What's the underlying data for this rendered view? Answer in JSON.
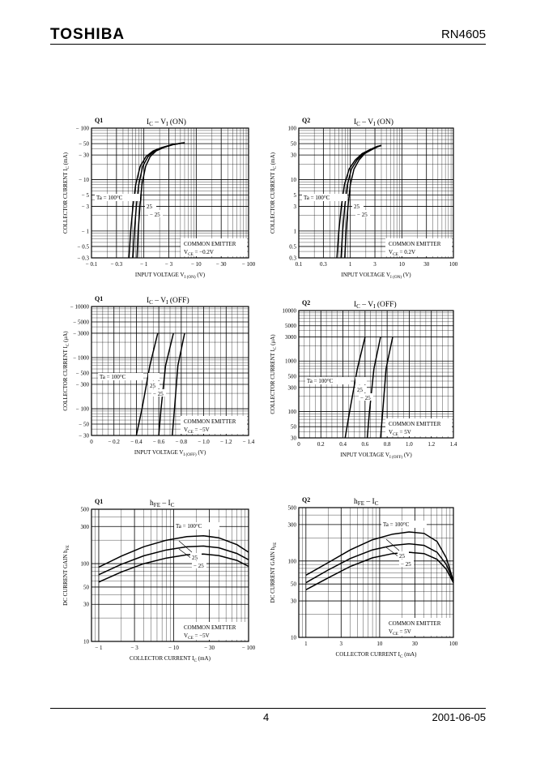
{
  "header": {
    "brand": "TOSHIBA",
    "part_number": "RN4605"
  },
  "footer": {
    "page_number": "4",
    "date": "2001-06-05"
  },
  "chart_data": [
    {
      "type": "line",
      "id": "q1-ic-vi-on",
      "panel": "Q1",
      "title_main": "I",
      "title_sub": "C",
      "title_rest": " – V",
      "title_sub2": "I",
      "title_tail": " (ON)",
      "x_scale": "log",
      "y_scale": "log",
      "negative": true,
      "xlim": [
        0.1,
        100
      ],
      "ylim": [
        0.3,
        100
      ],
      "x_ticks": [
        0.1,
        0.3,
        1,
        3,
        10,
        30,
        100
      ],
      "x_tick_labels": [
        "− 0.1",
        "− 0.3",
        "− 1",
        "− 3",
        "− 10",
        "− 30",
        "− 100"
      ],
      "y_ticks": [
        0.3,
        0.5,
        1,
        3,
        5,
        10,
        30,
        50,
        100
      ],
      "y_tick_labels": [
        "− 0.3",
        "− 0.5",
        "− 1",
        "− 3",
        "− 5",
        "− 10",
        "− 30",
        "− 50",
        "− 100"
      ],
      "xlabel": "INPUT VOLTAGE",
      "xlabel_sym": "V",
      "xlabel_sub": "I (ON)",
      "xlabel_unit": "(V)",
      "ylabel": "COLLECTOR CURRENT",
      "ylabel_sym": "I",
      "ylabel_sub": "C",
      "ylabel_unit": "(mA)",
      "note_line1": "COMMON EMITTER",
      "note_line2_sym": "V",
      "note_line2_sub": "CE",
      "note_line2_val": " = −0.2V",
      "series": [
        {
          "name": "Ta = 100°C",
          "x": [
            0.52,
            0.56,
            0.62,
            0.7,
            0.85,
            1.1,
            1.5,
            2.2,
            3.5,
            6.0
          ],
          "y": [
            0.3,
            1,
            3,
            8,
            18,
            28,
            36,
            42,
            48,
            52
          ]
        },
        {
          "name": "25",
          "x": [
            0.62,
            0.66,
            0.72,
            0.8,
            0.95,
            1.2,
            1.6,
            2.3,
            3.6,
            6.0
          ],
          "y": [
            0.3,
            1,
            3,
            8,
            18,
            28,
            36,
            42,
            48,
            52
          ]
        },
        {
          "name": "−25",
          "x": [
            0.74,
            0.78,
            0.84,
            0.92,
            1.08,
            1.32,
            1.72,
            2.4,
            3.7,
            6.0
          ],
          "y": [
            0.3,
            1,
            3,
            8,
            18,
            28,
            36,
            42,
            48,
            52
          ]
        }
      ],
      "legend_labels": [
        "Ta = 100°C",
        "25",
        "− 25"
      ]
    },
    {
      "type": "line",
      "id": "q2-ic-vi-on",
      "panel": "Q2",
      "title_main": "I",
      "title_sub": "C",
      "title_rest": " – V",
      "title_sub2": "I",
      "title_tail": " (ON)",
      "x_scale": "log",
      "y_scale": "log",
      "negative": false,
      "xlim": [
        0.1,
        100
      ],
      "ylim": [
        0.3,
        100
      ],
      "x_ticks": [
        0.1,
        0.3,
        1,
        3,
        10,
        30,
        100
      ],
      "x_tick_labels": [
        "0.1",
        "0.3",
        "1",
        "3",
        "10",
        "30",
        "100"
      ],
      "y_ticks": [
        0.3,
        0.5,
        1,
        3,
        5,
        10,
        30,
        50,
        100
      ],
      "y_tick_labels": [
        "0.3",
        "0.5",
        "1",
        "3",
        "5",
        "10",
        "30",
        "50",
        "100"
      ],
      "xlabel": "INPUT VOLTAGE",
      "xlabel_sym": "V",
      "xlabel_sub": "I (ON)",
      "xlabel_unit": "(V)",
      "ylabel": "COLLECTOR CURRENT",
      "ylabel_sym": "I",
      "ylabel_sub": "C",
      "ylabel_unit": "(mA)",
      "note_line1": "COMMON EMITTER",
      "note_line2_sym": "V",
      "note_line2_sub": "CE",
      "note_line2_val": " = 0.2V",
      "series": [
        {
          "name": "Ta = 100°C",
          "x": [
            0.55,
            0.6,
            0.67,
            0.77,
            0.95,
            1.25,
            1.7,
            2.4,
            3.3,
            4.0
          ],
          "y": [
            0.3,
            1,
            3,
            8,
            16,
            24,
            32,
            38,
            44,
            46
          ]
        },
        {
          "name": "25",
          "x": [
            0.66,
            0.71,
            0.78,
            0.88,
            1.05,
            1.35,
            1.8,
            2.5,
            3.4,
            4.0
          ],
          "y": [
            0.3,
            1,
            3,
            8,
            16,
            24,
            32,
            38,
            44,
            46
          ]
        },
        {
          "name": "−25",
          "x": [
            0.78,
            0.83,
            0.9,
            1.0,
            1.18,
            1.48,
            1.9,
            2.6,
            3.5,
            4.0
          ],
          "y": [
            0.3,
            1,
            3,
            8,
            16,
            24,
            32,
            38,
            44,
            46
          ]
        }
      ],
      "legend_labels": [
        "Ta = 100°C",
        "25",
        "− 25"
      ]
    },
    {
      "type": "line",
      "id": "q1-ic-vi-off",
      "panel": "Q1",
      "title_main": "I",
      "title_sub": "C",
      "title_rest": " – V",
      "title_sub2": "I",
      "title_tail": " (OFF)",
      "x_scale": "linear",
      "y_scale": "log",
      "negative": true,
      "xlim": [
        0,
        1.4
      ],
      "ylim": [
        30,
        10000
      ],
      "x_ticks": [
        0,
        0.2,
        0.4,
        0.6,
        0.8,
        1.0,
        1.2,
        1.4
      ],
      "x_tick_labels": [
        "0",
        "− 0.2",
        "− 0.4",
        "− 0.6",
        "− 0.8",
        "− 1.0",
        "− 1.2",
        "− 1.4"
      ],
      "y_ticks": [
        30,
        50,
        100,
        300,
        500,
        1000,
        3000,
        5000,
        10000
      ],
      "y_tick_labels": [
        "− 30",
        "− 50",
        "− 100",
        "− 300",
        "− 500",
        "− 1000",
        "− 3000",
        "− 5000",
        "− 10000"
      ],
      "xlabel": "INPUT VOLTAGE",
      "xlabel_sym": "V",
      "xlabel_sub": "I (OFF)",
      "xlabel_unit": "(V)",
      "ylabel": "COLLECTOR CURRENT",
      "ylabel_sym": "I",
      "ylabel_sub": "C",
      "ylabel_unit": "(μA)",
      "note_line1": "COMMON EMITTER",
      "note_line2_sym": "V",
      "note_line2_sub": "CE",
      "note_line2_val": " = −5V",
      "series": [
        {
          "name": "Ta = 100°C",
          "x": [
            0.4,
            0.45,
            0.52,
            0.59
          ],
          "y": [
            30,
            100,
            700,
            3000
          ]
        },
        {
          "name": "25",
          "x": [
            0.6,
            0.62,
            0.66,
            0.73
          ],
          "y": [
            30,
            100,
            700,
            3000
          ]
        },
        {
          "name": "−25",
          "x": [
            0.72,
            0.74,
            0.77,
            0.83
          ],
          "y": [
            30,
            100,
            700,
            3000
          ]
        }
      ],
      "legend_labels": [
        "Ta = 100°C",
        "25",
        "− 25"
      ]
    },
    {
      "type": "line",
      "id": "q2-ic-vi-off",
      "panel": "Q2",
      "title_main": "I",
      "title_sub": "C",
      "title_rest": " – V",
      "title_sub2": "I",
      "title_tail": " (OFF)",
      "x_scale": "linear",
      "y_scale": "log",
      "negative": false,
      "xlim": [
        0,
        1.4
      ],
      "ylim": [
        30,
        10000
      ],
      "x_ticks": [
        0,
        0.2,
        0.4,
        0.6,
        0.8,
        1.0,
        1.2,
        1.4
      ],
      "x_tick_labels": [
        "0",
        "0.2",
        "0.4",
        "0.6",
        "0.8",
        "1.0",
        "1.2",
        "1.4"
      ],
      "y_ticks": [
        30,
        50,
        100,
        300,
        500,
        1000,
        3000,
        5000,
        10000
      ],
      "y_tick_labels": [
        "30",
        "50",
        "100",
        "300",
        "500",
        "1000",
        "3000",
        "5000",
        "10000"
      ],
      "xlabel": "INPUT VOLTAGE",
      "xlabel_sym": "V",
      "xlabel_sub": "I (OFF)",
      "xlabel_unit": "(V)",
      "ylabel": "COLLECTOR CURRENT",
      "ylabel_sym": "I",
      "ylabel_sub": "C",
      "ylabel_unit": "(μA)",
      "note_line1": "COMMON EMITTER",
      "note_line2_sym": "V",
      "note_line2_sub": "CE",
      "note_line2_val": " = 5V",
      "series": [
        {
          "name": "Ta = 100°C",
          "x": [
            0.42,
            0.46,
            0.53,
            0.6
          ],
          "y": [
            30,
            100,
            700,
            3000
          ]
        },
        {
          "name": "25",
          "x": [
            0.62,
            0.64,
            0.68,
            0.74
          ],
          "y": [
            30,
            100,
            700,
            3000
          ]
        },
        {
          "name": "−25",
          "x": [
            0.74,
            0.76,
            0.79,
            0.85
          ],
          "y": [
            30,
            100,
            700,
            3000
          ]
        }
      ],
      "legend_labels": [
        "Ta = 100°C",
        "25",
        "− 25"
      ]
    },
    {
      "type": "line",
      "id": "q1-hfe-ic",
      "panel": "Q1",
      "title_main": "h",
      "title_sub": "FE",
      "title_rest": " – I",
      "title_sub2": "C",
      "title_tail": "",
      "x_scale": "log",
      "y_scale": "log",
      "negative": true,
      "xlim": [
        0.8,
        100
      ],
      "ylim": [
        10,
        500
      ],
      "x_ticks": [
        1,
        3,
        10,
        30,
        100
      ],
      "x_tick_labels": [
        "− 1",
        "− 3",
        "− 10",
        "− 30",
        "− 100"
      ],
      "y_ticks": [
        10,
        30,
        50,
        100,
        300,
        500
      ],
      "y_tick_labels": [
        "10",
        "30",
        "50",
        "100",
        "300",
        "500"
      ],
      "xlabel": "COLLECTOR CURRENT",
      "xlabel_sym": "I",
      "xlabel_sub": "C",
      "xlabel_unit": "(mA)",
      "ylabel": "DC CURRENT GAIN",
      "ylabel_sym": "h",
      "ylabel_sub": "FE",
      "ylabel_unit": "",
      "note_line1": "COMMON EMITTER",
      "note_line2_sym": "V",
      "note_line2_sub": "CE",
      "note_line2_val": " = −5V",
      "series": [
        {
          "name": "Ta = 100°C",
          "x": [
            1,
            2,
            4,
            8,
            15,
            25,
            40,
            70,
            100
          ],
          "y": [
            90,
            125,
            165,
            200,
            222,
            228,
            215,
            175,
            140
          ]
        },
        {
          "name": "25",
          "x": [
            1,
            2,
            4,
            8,
            15,
            25,
            40,
            70,
            100
          ],
          "y": [
            72,
            98,
            126,
            150,
            165,
            168,
            160,
            135,
            112
          ]
        },
        {
          "name": "−25",
          "x": [
            1,
            2,
            4,
            8,
            15,
            25,
            40,
            70,
            100
          ],
          "y": [
            58,
            78,
            100,
            118,
            130,
            133,
            127,
            110,
            92
          ]
        }
      ],
      "legend_labels": [
        "Ta = 100°C",
        "25",
        "− 25"
      ]
    },
    {
      "type": "line",
      "id": "q2-hfe-ic",
      "panel": "Q2",
      "title_main": "h",
      "title_sub": "FE",
      "title_rest": " – I",
      "title_sub2": "C",
      "title_tail": "",
      "x_scale": "log",
      "y_scale": "log",
      "negative": false,
      "xlim": [
        0.8,
        100
      ],
      "ylim": [
        10,
        500
      ],
      "x_ticks": [
        1,
        3,
        10,
        30,
        100
      ],
      "x_tick_labels": [
        "1",
        "3",
        "10",
        "30",
        "100"
      ],
      "y_ticks": [
        10,
        30,
        50,
        100,
        300,
        500
      ],
      "y_tick_labels": [
        "10",
        "30",
        "50",
        "100",
        "300",
        "500"
      ],
      "xlabel": "COLLECTOR CURRENT",
      "xlabel_sym": "I",
      "xlabel_sub": "C",
      "xlabel_unit": "(mA)",
      "ylabel": "DC CURRENT GAIN",
      "ylabel_sym": "h",
      "ylabel_sub": "FE",
      "ylabel_unit": "",
      "note_line1": "COMMON EMITTER",
      "note_line2_sym": "V",
      "note_line2_sub": "CE",
      "note_line2_val": " = 5V",
      "series": [
        {
          "name": "Ta = 100°C",
          "x": [
            1,
            2,
            4,
            8,
            15,
            25,
            40,
            60,
            80,
            100
          ],
          "y": [
            65,
            95,
            140,
            190,
            225,
            240,
            230,
            180,
            110,
            55
          ]
        },
        {
          "name": "25",
          "x": [
            1,
            2,
            4,
            8,
            15,
            25,
            40,
            60,
            80,
            100
          ],
          "y": [
            52,
            76,
            108,
            140,
            160,
            168,
            160,
            130,
            90,
            55
          ]
        },
        {
          "name": "−25",
          "x": [
            1,
            2,
            4,
            8,
            15,
            25,
            40,
            60,
            80,
            100
          ],
          "y": [
            42,
            60,
            85,
            110,
            125,
            130,
            125,
            105,
            78,
            52
          ]
        }
      ],
      "legend_labels": [
        "Ta = 100°C",
        "25",
        "− 25"
      ]
    }
  ]
}
